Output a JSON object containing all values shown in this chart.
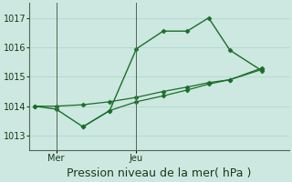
{
  "background_color": "#cce8e0",
  "grid_color": "#b0d8cc",
  "line_color": "#1a6e28",
  "xlabel": "Pression niveau de la mer( hPa )",
  "xlabel_fontsize": 9,
  "ylim": [
    1012.5,
    1017.5
  ],
  "yticks": [
    1013,
    1014,
    1015,
    1016,
    1017
  ],
  "ytick_fontsize": 7,
  "xtick_labels": [
    "Mer",
    "Jeu"
  ],
  "xtick_positions": [
    0.08,
    0.38
  ],
  "xtick_fontsize": 7,
  "line1_x": [
    0.0,
    0.08,
    0.18,
    0.28,
    0.38,
    0.48,
    0.57,
    0.65,
    0.73,
    0.85
  ],
  "line1_y": [
    1014.0,
    1013.9,
    1013.3,
    1013.85,
    1015.95,
    1016.55,
    1016.55,
    1017.0,
    1015.9,
    1015.2
  ],
  "line2_x": [
    0.0,
    0.08,
    0.18,
    0.28,
    0.38,
    0.48,
    0.57,
    0.65,
    0.73,
    0.85
  ],
  "line2_y": [
    1014.0,
    1014.0,
    1014.05,
    1014.15,
    1014.3,
    1014.5,
    1014.65,
    1014.8,
    1014.9,
    1015.3
  ],
  "line3_x": [
    0.18,
    0.28,
    0.38,
    0.48,
    0.57,
    0.65,
    0.73,
    0.85
  ],
  "line3_y": [
    1013.3,
    1013.85,
    1014.15,
    1014.35,
    1014.55,
    1014.75,
    1014.9,
    1015.25
  ],
  "vline_positions": [
    0.08,
    0.38
  ],
  "vline_color": "#556655",
  "figsize": [
    3.2,
    2.0
  ],
  "dpi": 100
}
